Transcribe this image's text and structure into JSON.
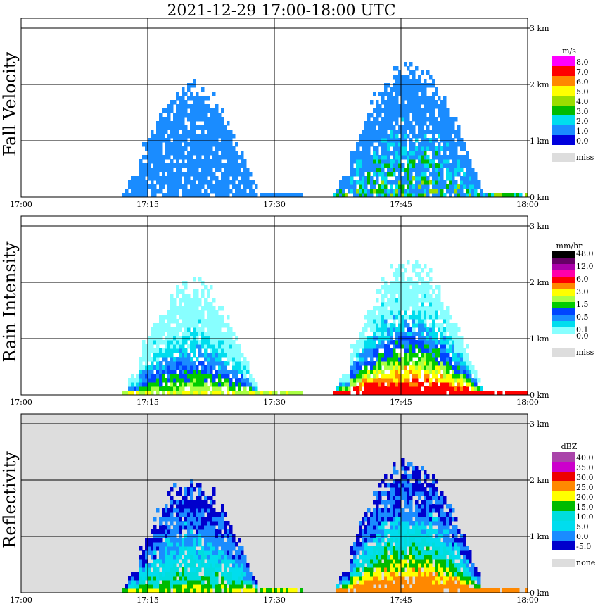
{
  "title": "2021-12-29   17:00-18:00 UTC",
  "x_ticks": [
    "17:00",
    "17:15",
    "17:30",
    "17:45",
    "18:00"
  ],
  "y_ticks": [
    "0 km",
    "1 km",
    "2 km",
    "3 km"
  ],
  "panels": [
    {
      "label": "Fall Velocity",
      "unit": "m/s",
      "background": "#ffffff",
      "colorbar": [
        {
          "value": "8.0",
          "color": "#ff00ff"
        },
        {
          "value": "7.0",
          "color": "#ff0000"
        },
        {
          "value": "6.0",
          "color": "#ff8800"
        },
        {
          "value": "5.0",
          "color": "#ffff00"
        },
        {
          "value": "4.0",
          "color": "#99dd00"
        },
        {
          "value": "3.0",
          "color": "#00bb00"
        },
        {
          "value": "2.0",
          "color": "#00ddee"
        },
        {
          "value": "1.0",
          "color": "#1a8cff"
        },
        {
          "value": "0.0",
          "color": "#0000dd"
        }
      ],
      "miss_label": "miss"
    },
    {
      "label": "Rain Intensity",
      "unit": "mm/hr",
      "background": "#ffffff",
      "colorbar": [
        {
          "value": "48.0",
          "color": "#000000"
        },
        {
          "value": "",
          "color": "#660066"
        },
        {
          "value": "12.0",
          "color": "#aa00aa"
        },
        {
          "value": "",
          "color": "#ff00aa"
        },
        {
          "value": "6.0",
          "color": "#ff0000"
        },
        {
          "value": "",
          "color": "#ff8800"
        },
        {
          "value": "3.0",
          "color": "#ffff00"
        },
        {
          "value": "",
          "color": "#aaff44"
        },
        {
          "value": "1.5",
          "color": "#00cc00"
        },
        {
          "value": "",
          "color": "#0044ff"
        },
        {
          "value": "0.5",
          "color": "#1a8cff"
        },
        {
          "value": "",
          "color": "#00ddee"
        },
        {
          "value": "0.1",
          "color": "#88ffff"
        },
        {
          "value": "0.0",
          "color": "#ffffff"
        }
      ],
      "miss_label": "miss"
    },
    {
      "label": "Reflectivity",
      "unit": "dBZ",
      "background": "#dddddd",
      "colorbar": [
        {
          "value": "40.0",
          "color": "#aa44aa"
        },
        {
          "value": "35.0",
          "color": "#cc00cc"
        },
        {
          "value": "30.0",
          "color": "#ee0000"
        },
        {
          "value": "25.0",
          "color": "#ff8800"
        },
        {
          "value": "20.0",
          "color": "#ffff00"
        },
        {
          "value": "15.0",
          "color": "#00bb00"
        },
        {
          "value": "10.0",
          "color": "#00dddd"
        },
        {
          "value": "5.0",
          "color": "#00ddee"
        },
        {
          "value": "0.0",
          "color": "#1a8cff"
        },
        {
          "value": "-5.0",
          "color": "#0000cc"
        }
      ],
      "miss_label": "none"
    }
  ],
  "chart_data": [
    {
      "type": "heatmap",
      "title": "2021-12-29   17:00-18:00 UTC",
      "ylabel": "Fall Velocity",
      "units": "m/s",
      "x_range": [
        "17:00",
        "18:00"
      ],
      "y_range_km": [
        0,
        3
      ],
      "grid": true,
      "echoes": [
        {
          "start": "17:12",
          "end": "17:33",
          "top_km": 1.9,
          "dominant_value_m_s": 1.5
        },
        {
          "start": "17:37",
          "end": "18:00",
          "top_km": 2.2,
          "dominant_value_m_s": 2.0,
          "max_m_s": 4.0
        }
      ]
    },
    {
      "type": "heatmap",
      "ylabel": "Rain Intensity",
      "units": "mm/hr",
      "x_range": [
        "17:00",
        "18:00"
      ],
      "y_range_km": [
        0,
        3
      ],
      "grid": true,
      "echoes": [
        {
          "start": "17:12",
          "end": "17:33",
          "top_km": 1.8,
          "max_mm_hr": 1.5
        },
        {
          "start": "17:37",
          "end": "18:00",
          "top_km": 2.1,
          "max_mm_hr": 6.0
        }
      ]
    },
    {
      "type": "heatmap",
      "ylabel": "Reflectivity",
      "units": "dBZ",
      "x_range": [
        "17:00",
        "18:00"
      ],
      "y_range_km": [
        0,
        3
      ],
      "grid": true,
      "echoes": [
        {
          "start": "17:12",
          "end": "17:33",
          "top_km": 1.9,
          "max_dbz": 20.0
        },
        {
          "start": "17:37",
          "end": "18:00",
          "top_km": 2.2,
          "max_dbz": 25.0
        }
      ]
    }
  ]
}
